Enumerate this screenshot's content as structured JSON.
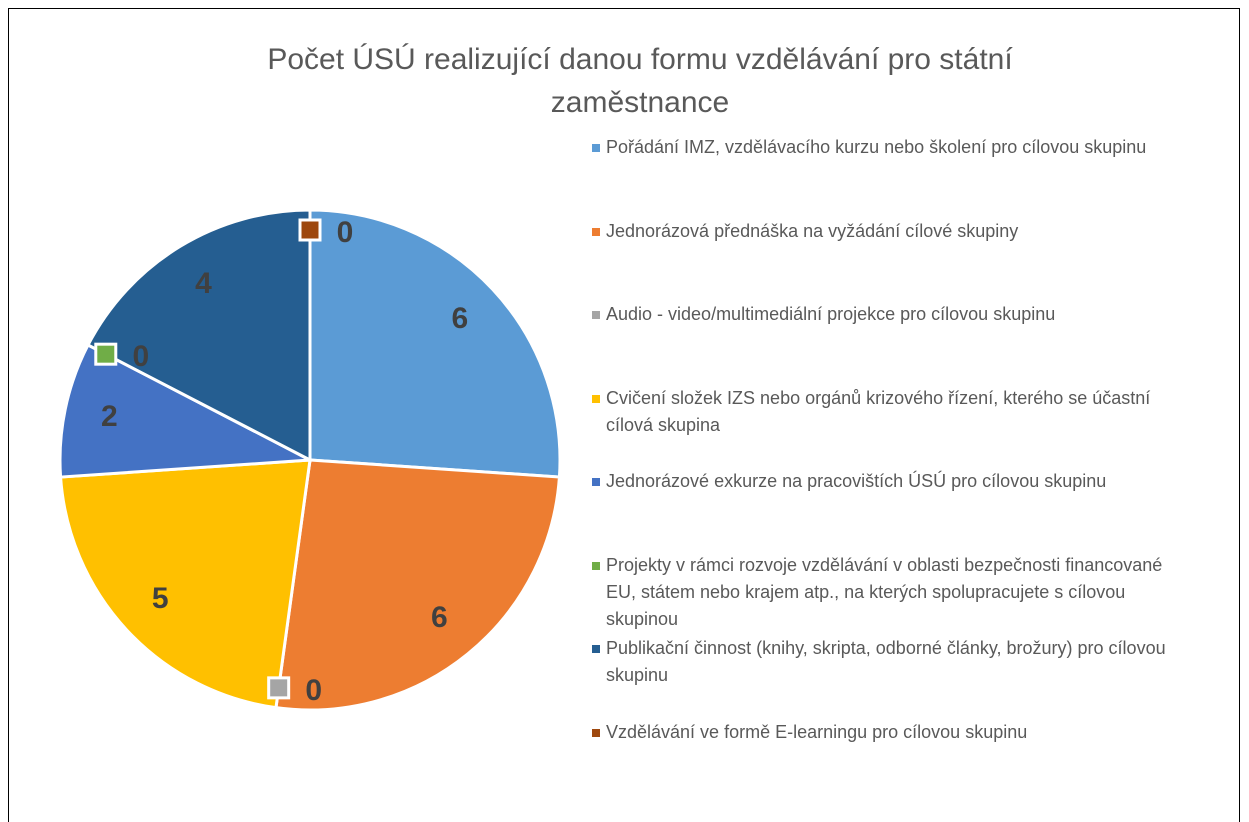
{
  "chart_data": {
    "type": "pie",
    "title": "Počet ÚSÚ realizující danou formu vzdělávání pro státní zaměstnance",
    "categories": [
      "Pořádání IMZ, vzdělávacího kurzu nebo školení pro cílovou skupinu",
      "Jednorázová přednáška na vyžádání cílové skupiny",
      "Audio - video/multimediální projekce pro cílovou skupinu",
      "Cvičení složek IZS nebo orgánů krizového řízení, kterého se účastní cílová skupina",
      "Jednorázové exkurze na pracovištích ÚSÚ pro cílovou skupinu",
      "Projekty v rámci rozvoje vzdělávání v oblasti bezpečnosti financované EU, státem nebo krajem atp., na kterých spolupracujete s cílovou skupinou",
      "Publikační činnost (knihy, skripta, odborné články, brožury) pro cílovou skupinu",
      "Vzdělávání ve formě E-learningu pro cílovou skupinu"
    ],
    "values": [
      6,
      6,
      0,
      5,
      2,
      0,
      4,
      0
    ],
    "colors": [
      "#5b9bd5",
      "#ed7d31",
      "#a5a5a5",
      "#ffc000",
      "#4472c4",
      "#70ad47",
      "#255e91",
      "#9e480e"
    ],
    "legend": "right"
  }
}
